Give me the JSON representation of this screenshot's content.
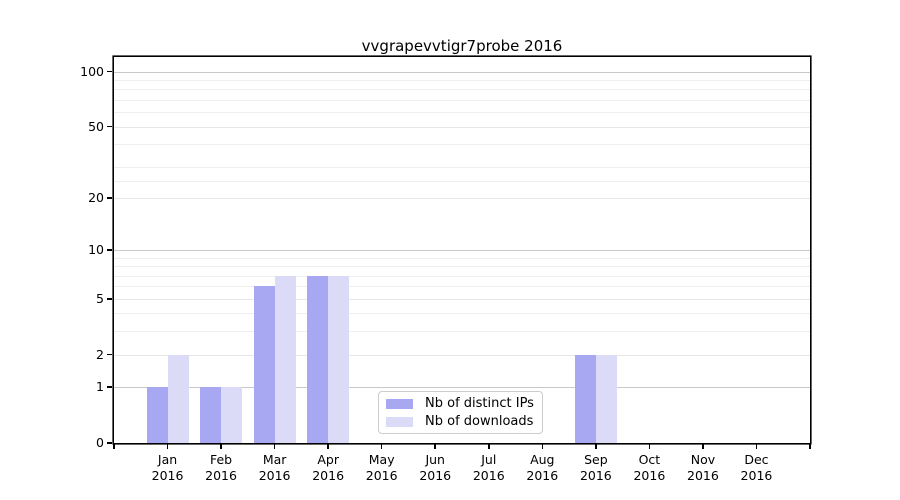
{
  "chart_data": {
    "type": "bar",
    "title": "vvgrapevvtigr7probe 2016",
    "x_year": "2016",
    "categories": [
      "Jan",
      "Feb",
      "Mar",
      "Apr",
      "May",
      "Jun",
      "Jul",
      "Aug",
      "Sep",
      "Oct",
      "Nov",
      "Dec"
    ],
    "series": [
      {
        "name": "Nb of distinct IPs",
        "color": "#a8a8f2",
        "values": [
          1,
          1,
          6,
          7,
          0,
          0,
          0,
          0,
          2,
          0,
          0,
          0
        ]
      },
      {
        "name": "Nb of downloads",
        "color": "#dbdbf7",
        "values": [
          2,
          1,
          7,
          7,
          0,
          0,
          0,
          0,
          2,
          0,
          0,
          0
        ]
      }
    ],
    "yscale": "log1p",
    "ylim": [
      0,
      120
    ],
    "yticks": [
      0,
      1,
      2,
      5,
      10,
      20,
      50,
      100
    ],
    "decade_gridline_values": [
      1,
      10,
      100
    ],
    "mid_gridline_values": [
      2,
      5,
      20,
      50
    ],
    "minor_gridline_values": [
      3,
      4,
      6,
      7,
      8,
      9,
      25,
      30,
      40,
      60,
      70,
      80,
      90
    ],
    "legend": {
      "entries": [
        "Nb of distinct IPs",
        "Nb of downloads"
      ],
      "location": "lower center"
    }
  }
}
